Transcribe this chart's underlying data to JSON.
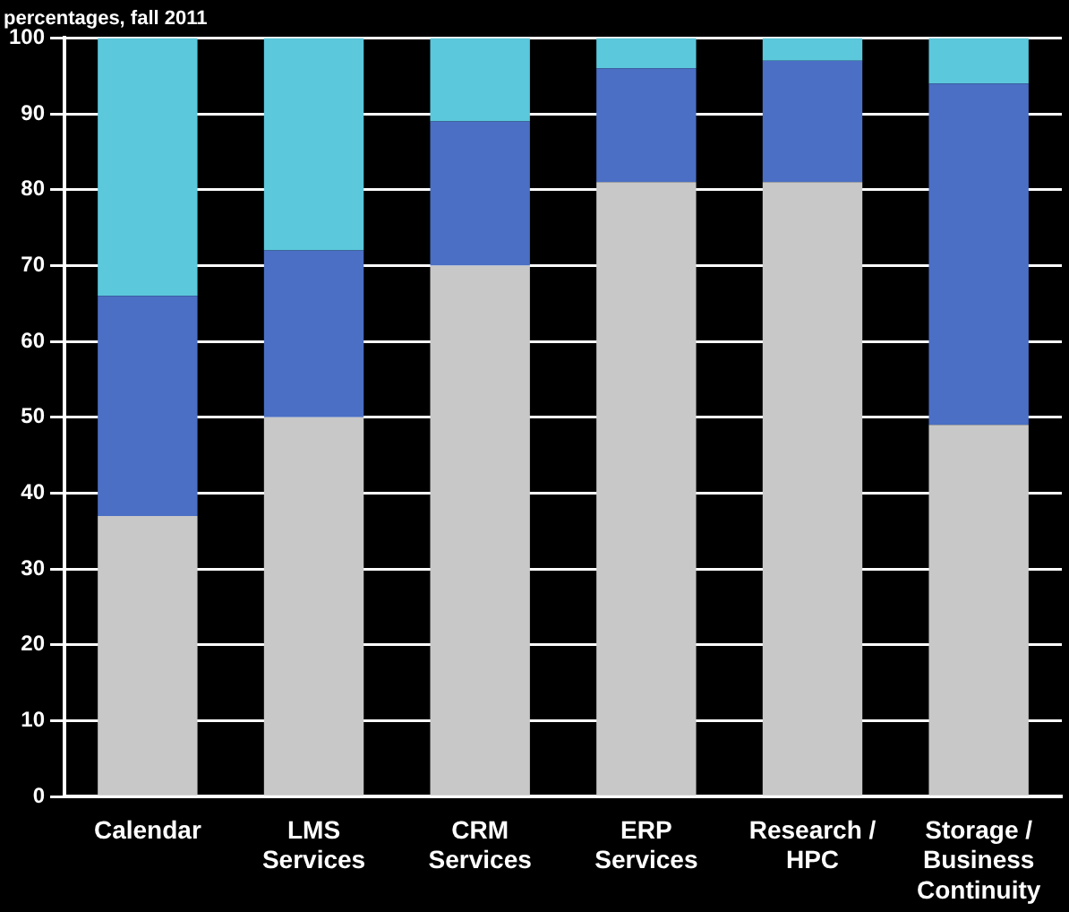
{
  "chart_data": {
    "type": "bar",
    "title": "percentages, fall 2011",
    "categories": [
      "Calendar",
      "LMS Services",
      "CRM Services",
      "ERP Services",
      "Research / HPC",
      "Storage / Business Continuity"
    ],
    "stacked": true,
    "series": [
      {
        "color": "#c8c8c8",
        "values": [
          37,
          50,
          70,
          81,
          81,
          49
        ]
      },
      {
        "color": "#4a6fc4",
        "values": [
          29,
          22,
          19,
          15,
          16,
          45
        ]
      },
      {
        "color": "#5bc8dc",
        "values": [
          34,
          28,
          11,
          4,
          3,
          6
        ]
      }
    ],
    "ylim": [
      0,
      100
    ],
    "yticks": [
      0,
      10,
      20,
      30,
      40,
      50,
      60,
      70,
      80,
      90,
      100
    ],
    "grid": "y",
    "legend": false
  }
}
